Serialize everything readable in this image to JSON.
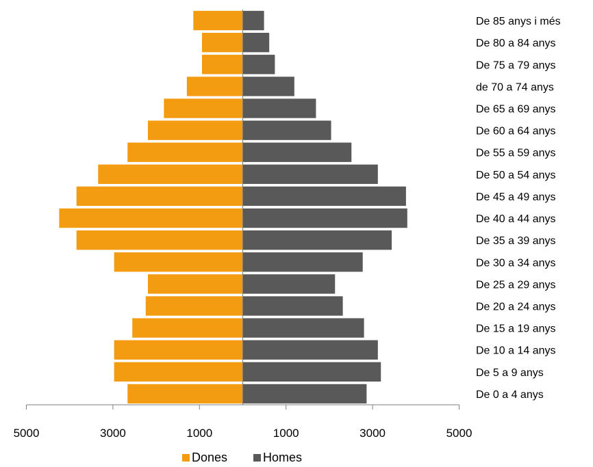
{
  "chart_data": {
    "type": "bar",
    "orientation": "horizontal",
    "subtype": "population-pyramid",
    "title": "",
    "xlabel": "",
    "ylabel": "",
    "xlim": [
      -5000,
      5000
    ],
    "x_ticks": [
      -5000,
      -3000,
      -1000,
      1000,
      3000,
      5000
    ],
    "x_tick_labels": [
      "5000",
      "3000",
      "1000",
      "1000",
      "3000",
      "5000"
    ],
    "categories": [
      "De 85 anys i més",
      "De 80 a 84 anys",
      "De 75 a 79 anys",
      "de 70 a 74 anys",
      "De 65 a 69 anys",
      "De 60 a 64 anys",
      "De 55 a 59 anys",
      "De 50 a 54 anys",
      "De 45 a 49 anys",
      "De 40 a 44 anys",
      "De 35 a 39 anys",
      "De 30 a 34 anys",
      "De 25 a 29 anys",
      "De 20 a 24 anys",
      "De 15 a 19 anys",
      "De 10 a 14 anys",
      "De 5 a 9 anys",
      "De 0 a 4 anys"
    ],
    "series": [
      {
        "name": "Dones",
        "color": "#F39C12",
        "values": [
          1150,
          950,
          950,
          1300,
          1830,
          2200,
          2670,
          3350,
          3850,
          4250,
          3850,
          2980,
          2200,
          2250,
          2560,
          2980,
          2980,
          2670
        ]
      },
      {
        "name": "Homes",
        "color": "#595959",
        "values": [
          500,
          620,
          750,
          1200,
          1700,
          2050,
          2520,
          3130,
          3780,
          3810,
          3450,
          2780,
          2140,
          2320,
          2810,
          3130,
          3200,
          2870
        ]
      }
    ],
    "grid": false,
    "legend_position": "bottom"
  }
}
